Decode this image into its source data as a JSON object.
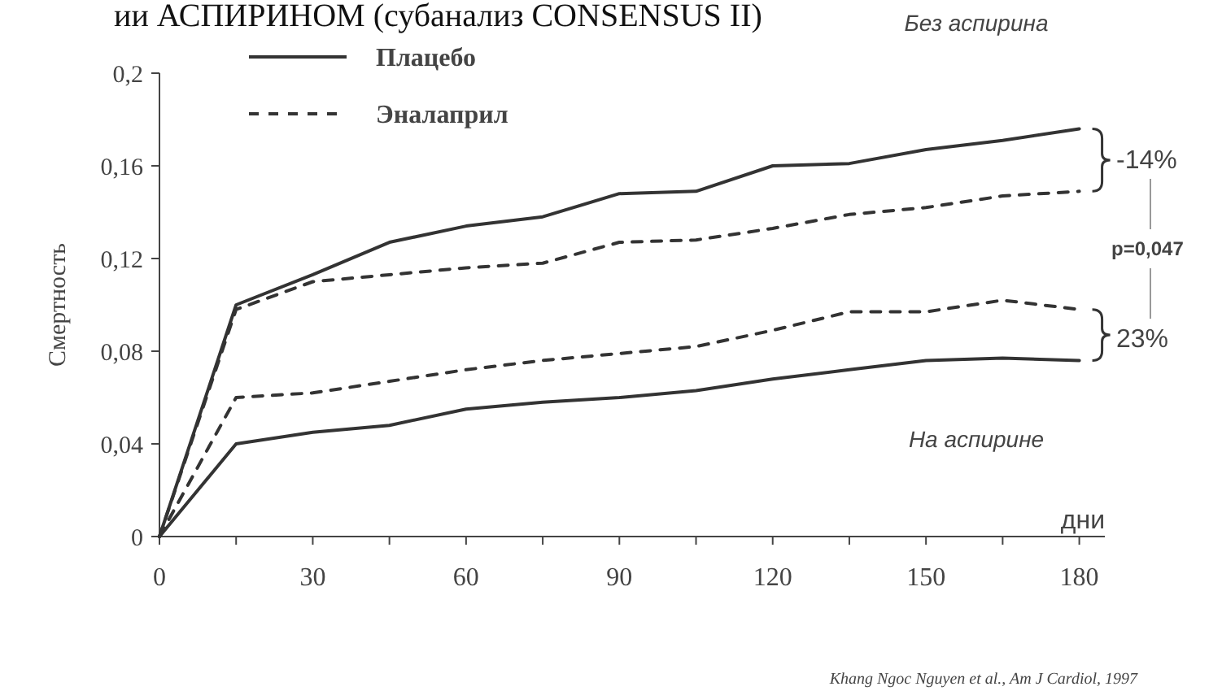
{
  "chart_data": {
    "type": "line",
    "title": "ии АСПИРИНОМ (субанализ CONSENSUS II)",
    "xlabel": "дни",
    "ylabel": "Смертность",
    "x": [
      0,
      15,
      30,
      45,
      60,
      75,
      90,
      105,
      120,
      135,
      150,
      165,
      180
    ],
    "series": [
      {
        "name": "Плацебо",
        "color": "#333333",
        "line_style": "solid",
        "values": [
          0,
          0.1,
          0.113,
          0.127,
          0.134,
          0.138,
          0.148,
          0.149,
          0.16,
          0.161,
          0.167,
          0.171,
          0.176
        ]
      },
      {
        "name": "Эналаприл",
        "color": "#333333",
        "line_style": "dashed",
        "values": [
          0,
          0.098,
          0.11,
          0.113,
          0.116,
          0.118,
          0.127,
          0.128,
          0.133,
          0.139,
          0.142,
          0.147,
          0.149
        ]
      },
      {
        "color": "#333333",
        "line_style": "dashed",
        "values": [
          0,
          0.06,
          0.062,
          0.067,
          0.072,
          0.076,
          0.079,
          0.082,
          0.089,
          0.097,
          0.097,
          0.102,
          0.098
        ]
      },
      {
        "color": "#333333",
        "line_style": "solid",
        "values": [
          0,
          0.04,
          0.045,
          0.048,
          0.055,
          0.058,
          0.06,
          0.063,
          0.068,
          0.072,
          0.076,
          0.077,
          0.076
        ]
      }
    ],
    "xlim": [
      0,
      185
    ],
    "xticks": [
      0,
      {
        "value": 15,
        "label": null
      },
      30,
      {
        "value": 45,
        "label": null
      },
      60,
      {
        "value": 75,
        "label": null
      },
      90,
      {
        "value": 105,
        "label": null
      },
      120,
      {
        "value": 135,
        "label": null
      },
      150,
      {
        "value": 165,
        "label": null
      },
      180
    ],
    "ylim": [
      0,
      0.2
    ],
    "yticks": [
      {
        "value": 0,
        "label": "0"
      },
      {
        "value": 0.04,
        "label": "0,04"
      },
      {
        "value": 0.08,
        "label": "0,08"
      },
      {
        "value": 0.12,
        "label": "0,12"
      },
      {
        "value": 0.16,
        "label": "0,16"
      },
      {
        "value": 0.2,
        "label": "0,2"
      }
    ],
    "grid": false,
    "legend": "top left",
    "marker": "none",
    "annotations": [
      "Без аспирина",
      "На аспирине",
      "-14%",
      "p=0,047",
      "23%",
      "Khang Ngoc Nguyen et al., Am J Cardiol, 1997"
    ]
  }
}
